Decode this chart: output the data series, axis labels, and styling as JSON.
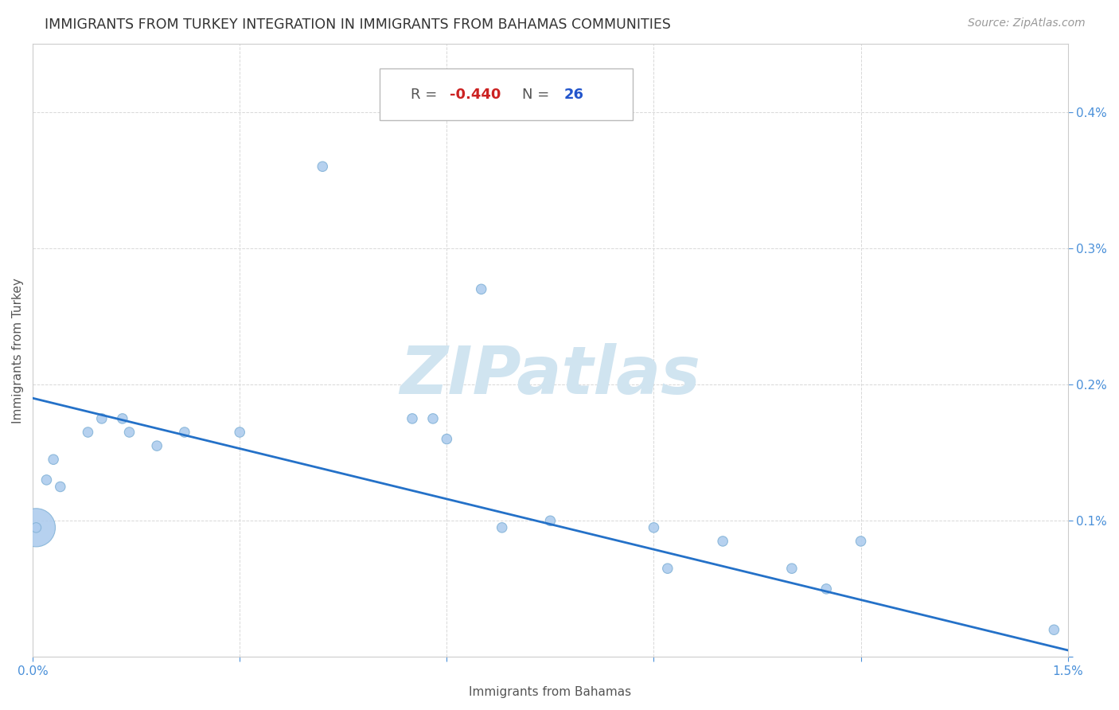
{
  "title": "IMMIGRANTS FROM TURKEY INTEGRATION IN IMMIGRANTS FROM BAHAMAS COMMUNITIES",
  "source": "Source: ZipAtlas.com",
  "xlabel": "Immigrants from Bahamas",
  "ylabel": "Immigrants from Turkey",
  "R": -0.44,
  "N": 26,
  "xlim": [
    0.0,
    0.015
  ],
  "ylim": [
    0.0,
    0.0045
  ],
  "xtick_positions": [
    0.0,
    0.003,
    0.006,
    0.009,
    0.012,
    0.015
  ],
  "xtick_labels": [
    "0.0%",
    "",
    "",
    "",
    "",
    "1.5%"
  ],
  "ytick_positions": [
    0.0,
    0.001,
    0.002,
    0.003,
    0.004
  ],
  "ytick_labels": [
    "",
    "0.1%",
    "0.2%",
    "0.3%",
    "0.4%"
  ],
  "scatter_x": [
    5e-05,
    5e-05,
    0.0002,
    0.0003,
    0.0004,
    0.0008,
    0.001,
    0.0013,
    0.0014,
    0.0018,
    0.0022,
    0.003,
    0.0042,
    0.0055,
    0.0058,
    0.006,
    0.0065,
    0.0068,
    0.0075,
    0.009,
    0.0092,
    0.01,
    0.011,
    0.0115,
    0.012,
    0.0148
  ],
  "scatter_y": [
    0.00095,
    0.00095,
    0.0013,
    0.00145,
    0.00125,
    0.00165,
    0.00175,
    0.00175,
    0.00165,
    0.00155,
    0.00165,
    0.00165,
    0.0036,
    0.00175,
    0.00175,
    0.0016,
    0.0027,
    0.00095,
    0.001,
    0.00095,
    0.00065,
    0.00085,
    0.00065,
    0.0005,
    0.00085,
    0.0002
  ],
  "scatter_sizes": [
    1200,
    80,
    80,
    80,
    80,
    80,
    80,
    80,
    80,
    80,
    80,
    80,
    80,
    80,
    80,
    80,
    80,
    80,
    80,
    80,
    80,
    80,
    80,
    80,
    80,
    80
  ],
  "scatter_color": "#aeccee",
  "scatter_edge_color": "#85b4d8",
  "regression_color": "#2471c8",
  "regression_x_start": 0.0,
  "regression_x_end": 0.015,
  "regression_y_start": 0.0019,
  "regression_y_end": 5e-05,
  "watermark_text": "ZIPatlas",
  "watermark_color": "#d0e4f0",
  "title_fontsize": 12.5,
  "source_fontsize": 10,
  "axis_label_fontsize": 11,
  "tick_fontsize": 11,
  "tick_color": "#4a90d9",
  "grid_color": "#d8d8d8",
  "grid_linestyle": "--",
  "background_color": "#ffffff",
  "annotation_R_label_color": "#555555",
  "annotation_R_value_color": "#cc2222",
  "annotation_N_label_color": "#555555",
  "annotation_N_value_color": "#2255cc",
  "annotation_R_value": "-0.440",
  "annotation_N_value": "26",
  "annotation_fontsize": 13,
  "annotation_box_facecolor": "#ffffff",
  "annotation_box_edgecolor": "#bbbbbb"
}
